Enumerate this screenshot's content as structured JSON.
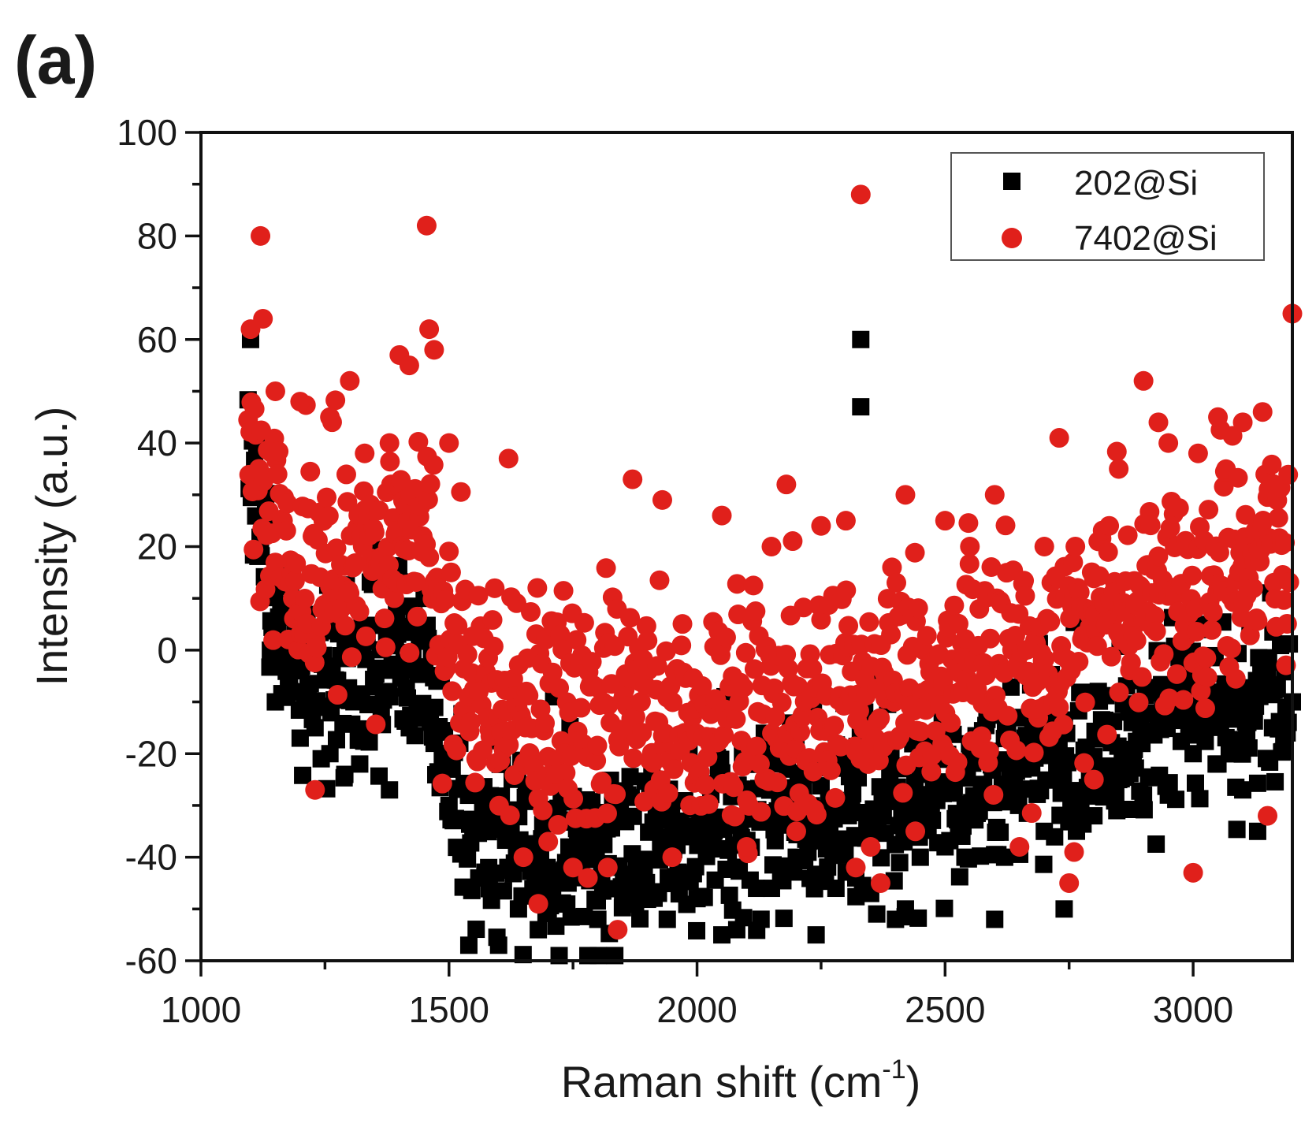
{
  "chart_data": {
    "type": "scatter",
    "panel_label": "(a)",
    "xlabel": "Raman shift (cm",
    "xlabel_sup": "-1",
    "xlabel_close": ")",
    "ylabel": "Intensity (a.u.)",
    "xlim": [
      1000,
      3200
    ],
    "ylim": [
      -60,
      100
    ],
    "x_ticks": [
      1000,
      1500,
      2000,
      2500,
      3000
    ],
    "x_tick_labels": [
      "1000",
      "1500",
      "2000",
      "2500",
      "3000"
    ],
    "y_ticks": [
      -60,
      -40,
      -20,
      0,
      20,
      40,
      60,
      80,
      100
    ],
    "y_tick_labels": [
      "-60",
      "-40",
      "-20",
      "0",
      "20",
      "40",
      "60",
      "80",
      "100"
    ],
    "grid": false,
    "legend_position": "top-right",
    "series": [
      {
        "name": "202@Si",
        "color": "#000000",
        "marker": "square",
        "baseline": [
          [
            1100,
            40
          ],
          [
            1150,
            5
          ],
          [
            1200,
            -5
          ],
          [
            1300,
            -5
          ],
          [
            1400,
            -2
          ],
          [
            1450,
            -5
          ],
          [
            1500,
            -22
          ],
          [
            1550,
            -35
          ],
          [
            1700,
            -38
          ],
          [
            1900,
            -38
          ],
          [
            2100,
            -32
          ],
          [
            2300,
            -30
          ],
          [
            2500,
            -28
          ],
          [
            2700,
            -22
          ],
          [
            2900,
            -15
          ],
          [
            3100,
            -10
          ],
          [
            3200,
            -8
          ]
        ],
        "points": [
          [
            1100,
            60
          ],
          [
            1120,
            20
          ],
          [
            1140,
            0
          ],
          [
            1150,
            -10
          ],
          [
            1180,
            -8
          ],
          [
            1200,
            -17
          ],
          [
            1230,
            -15
          ],
          [
            1260,
            -20
          ],
          [
            1290,
            -24
          ],
          [
            1320,
            -22
          ],
          [
            1380,
            -27
          ],
          [
            1420,
            -15
          ],
          [
            1450,
            10
          ],
          [
            1470,
            -18
          ],
          [
            1500,
            -30
          ],
          [
            1540,
            -57
          ],
          [
            1560,
            -44
          ],
          [
            1580,
            -42
          ],
          [
            1600,
            -57
          ],
          [
            1640,
            -50
          ],
          [
            1680,
            -54
          ],
          [
            1700,
            -50
          ],
          [
            1740,
            -45
          ],
          [
            1780,
            -59
          ],
          [
            1800,
            -52
          ],
          [
            1850,
            -48
          ],
          [
            1900,
            -47
          ],
          [
            1940,
            -52
          ],
          [
            2000,
            -48
          ],
          [
            2050,
            -55
          ],
          [
            2080,
            -54
          ],
          [
            2120,
            -46
          ],
          [
            2150,
            -46
          ],
          [
            2200,
            -40
          ],
          [
            2240,
            -55
          ],
          [
            2280,
            -46
          ],
          [
            2320,
            -44
          ],
          [
            2330,
            60
          ],
          [
            2330,
            47
          ],
          [
            2350,
            -47
          ],
          [
            2400,
            -52
          ],
          [
            2420,
            -50
          ],
          [
            2450,
            -40
          ],
          [
            2500,
            -38
          ],
          [
            2540,
            -40
          ],
          [
            2600,
            -52
          ],
          [
            2620,
            -40
          ],
          [
            2700,
            -35
          ],
          [
            2740,
            -50
          ],
          [
            2800,
            -32
          ],
          [
            2850,
            -25
          ],
          [
            2900,
            -28
          ],
          [
            2950,
            -28
          ],
          [
            3000,
            -20
          ],
          [
            3050,
            -22
          ],
          [
            3100,
            -27
          ],
          [
            3130,
            -35
          ],
          [
            3160,
            -15
          ],
          [
            3200,
            -10
          ]
        ]
      },
      {
        "name": "7402@Si",
        "color": "#e0201b",
        "marker": "circle",
        "baseline": [
          [
            1100,
            45
          ],
          [
            1150,
            20
          ],
          [
            1200,
            15
          ],
          [
            1300,
            15
          ],
          [
            1400,
            20
          ],
          [
            1450,
            25
          ],
          [
            1500,
            5
          ],
          [
            1550,
            -8
          ],
          [
            1700,
            -12
          ],
          [
            1900,
            -12
          ],
          [
            2100,
            -12
          ],
          [
            2300,
            -8
          ],
          [
            2500,
            -5
          ],
          [
            2700,
            0
          ],
          [
            2900,
            10
          ],
          [
            3100,
            15
          ],
          [
            3200,
            18
          ]
        ],
        "points": [
          [
            1100,
            62
          ],
          [
            1120,
            80
          ],
          [
            1125,
            64
          ],
          [
            1150,
            50
          ],
          [
            1200,
            48
          ],
          [
            1230,
            -27
          ],
          [
            1260,
            45
          ],
          [
            1300,
            52
          ],
          [
            1330,
            38
          ],
          [
            1380,
            40
          ],
          [
            1400,
            57
          ],
          [
            1420,
            55
          ],
          [
            1455,
            82
          ],
          [
            1460,
            62
          ],
          [
            1470,
            58
          ],
          [
            1500,
            40
          ],
          [
            1560,
            -8
          ],
          [
            1620,
            37
          ],
          [
            1650,
            -40
          ],
          [
            1680,
            -49
          ],
          [
            1700,
            -37
          ],
          [
            1750,
            -42
          ],
          [
            1780,
            -44
          ],
          [
            1820,
            -42
          ],
          [
            1840,
            -54
          ],
          [
            1870,
            33
          ],
          [
            1930,
            29
          ],
          [
            1950,
            -40
          ],
          [
            2050,
            26
          ],
          [
            2100,
            -38
          ],
          [
            2150,
            20
          ],
          [
            2180,
            32
          ],
          [
            2200,
            -35
          ],
          [
            2250,
            24
          ],
          [
            2300,
            25
          ],
          [
            2320,
            -42
          ],
          [
            2330,
            88
          ],
          [
            2350,
            -38
          ],
          [
            2370,
            -45
          ],
          [
            2420,
            30
          ],
          [
            2440,
            -35
          ],
          [
            2500,
            25
          ],
          [
            2550,
            20
          ],
          [
            2600,
            30
          ],
          [
            2650,
            -38
          ],
          [
            2700,
            20
          ],
          [
            2730,
            41
          ],
          [
            2750,
            -45
          ],
          [
            2760,
            -39
          ],
          [
            2800,
            -25
          ],
          [
            2850,
            35
          ],
          [
            2900,
            52
          ],
          [
            2930,
            44
          ],
          [
            2950,
            40
          ],
          [
            3000,
            -43
          ],
          [
            3010,
            38
          ],
          [
            3050,
            45
          ],
          [
            3100,
            44
          ],
          [
            3140,
            46
          ],
          [
            3150,
            -32
          ],
          [
            3200,
            65
          ]
        ]
      }
    ]
  }
}
